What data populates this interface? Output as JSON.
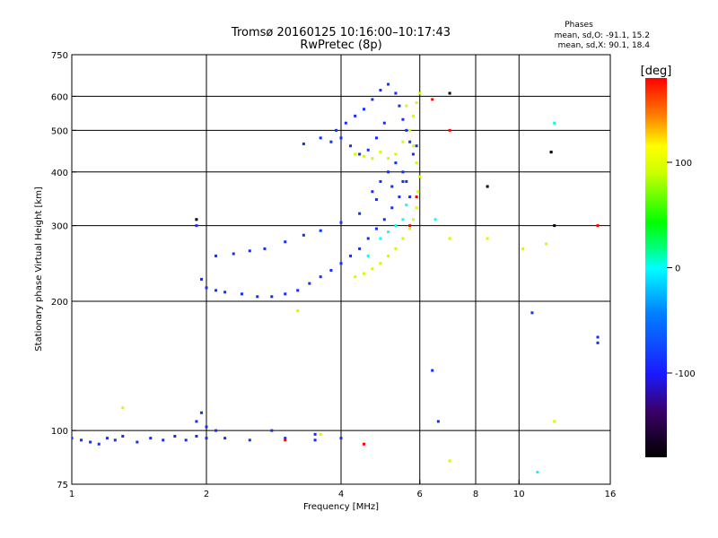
{
  "chart_data": {
    "type": "scatter",
    "title": "Tromsø 20160125 10:16:00–10:17:43",
    "subtitle": "RwPretec (8p)",
    "phases_title": "Phases",
    "phases_o": "mean, sd,O: -91.1, 15.2",
    "phases_x": "mean, sd,X:  90.1, 18.4",
    "xlabel": "Frequency [MHz]",
    "ylabel": "Stationary phase Virtual Height [km]",
    "xscale": "log",
    "yscale": "log",
    "xlim": [
      1,
      16
    ],
    "ylim": [
      75,
      750
    ],
    "xticks": [
      1,
      2,
      4,
      6,
      8,
      10,
      16
    ],
    "yticks": [
      75,
      100,
      200,
      300,
      400,
      500,
      600,
      750
    ],
    "xgrid": [
      2,
      4,
      6,
      8,
      10
    ],
    "ygrid": [
      100,
      200,
      300,
      400,
      500,
      600
    ],
    "colorbar": {
      "label": "[deg]",
      "range": [
        -180,
        180
      ],
      "ticks": [
        100,
        0,
        -100
      ]
    },
    "series": [
      {
        "phase": -90,
        "points": [
          [
            1.0,
            96
          ],
          [
            1.05,
            95
          ],
          [
            1.1,
            94
          ],
          [
            1.15,
            93
          ],
          [
            1.2,
            96
          ],
          [
            1.25,
            95
          ],
          [
            1.3,
            97
          ],
          [
            1.4,
            94
          ],
          [
            1.5,
            96
          ],
          [
            1.6,
            95
          ],
          [
            1.7,
            97
          ],
          [
            1.8,
            95
          ],
          [
            1.9,
            97
          ],
          [
            2.0,
            96
          ],
          [
            2.2,
            96
          ],
          [
            2.5,
            95
          ],
          [
            3.0,
            96
          ],
          [
            3.5,
            95
          ],
          [
            4.0,
            96
          ],
          [
            1.9,
            105
          ],
          [
            2.0,
            102
          ],
          [
            2.1,
            100
          ],
          [
            1.95,
            110
          ],
          [
            1.9,
            300
          ],
          [
            1.95,
            225
          ],
          [
            2.0,
            215
          ],
          [
            2.1,
            212
          ],
          [
            2.2,
            210
          ],
          [
            2.4,
            208
          ],
          [
            2.6,
            205
          ],
          [
            2.8,
            205
          ],
          [
            3.0,
            208
          ],
          [
            3.2,
            212
          ],
          [
            3.4,
            220
          ],
          [
            3.6,
            228
          ],
          [
            3.8,
            236
          ],
          [
            4.0,
            245
          ],
          [
            4.2,
            255
          ],
          [
            4.4,
            265
          ],
          [
            4.6,
            280
          ],
          [
            4.8,
            295
          ],
          [
            5.0,
            310
          ],
          [
            5.2,
            330
          ],
          [
            5.4,
            350
          ],
          [
            5.6,
            380
          ],
          [
            2.1,
            255
          ],
          [
            2.3,
            258
          ],
          [
            2.5,
            262
          ],
          [
            2.7,
            265
          ],
          [
            3.0,
            275
          ],
          [
            3.3,
            285
          ],
          [
            3.6,
            292
          ],
          [
            4.0,
            305
          ],
          [
            4.4,
            320
          ],
          [
            4.8,
            345
          ],
          [
            5.2,
            370
          ],
          [
            5.5,
            400
          ],
          [
            3.3,
            465
          ],
          [
            3.6,
            480
          ],
          [
            3.9,
            500
          ],
          [
            4.1,
            520
          ],
          [
            4.3,
            540
          ],
          [
            4.5,
            560
          ],
          [
            4.7,
            590
          ],
          [
            4.9,
            620
          ],
          [
            5.1,
            640
          ],
          [
            5.3,
            610
          ],
          [
            5.4,
            570
          ],
          [
            5.5,
            530
          ],
          [
            5.6,
            500
          ],
          [
            5.7,
            470
          ],
          [
            5.8,
            440
          ],
          [
            5.9,
            460
          ],
          [
            5.0,
            520
          ],
          [
            4.8,
            480
          ],
          [
            4.6,
            450
          ],
          [
            4.4,
            440
          ],
          [
            4.2,
            460
          ],
          [
            4.0,
            480
          ],
          [
            3.8,
            470
          ],
          [
            5.1,
            400
          ],
          [
            5.3,
            420
          ],
          [
            5.5,
            380
          ],
          [
            5.7,
            350
          ],
          [
            4.9,
            380
          ],
          [
            4.7,
            360
          ],
          [
            2.8,
            100
          ],
          [
            3.5,
            98
          ],
          [
            10.7,
            188
          ],
          [
            15.0,
            165
          ],
          [
            15.0,
            160
          ],
          [
            6.6,
            105
          ],
          [
            6.4,
            138
          ],
          [
            11.8,
            445
          ]
        ]
      },
      {
        "phase": 90,
        "points": [
          [
            4.3,
            228
          ],
          [
            4.5,
            232
          ],
          [
            4.7,
            238
          ],
          [
            4.9,
            245
          ],
          [
            5.1,
            255
          ],
          [
            5.3,
            265
          ],
          [
            5.5,
            280
          ],
          [
            5.7,
            295
          ],
          [
            5.8,
            310
          ],
          [
            5.9,
            330
          ],
          [
            5.95,
            360
          ],
          [
            6.0,
            390
          ],
          [
            5.9,
            420
          ],
          [
            5.8,
            460
          ],
          [
            5.7,
            500
          ],
          [
            5.8,
            540
          ],
          [
            5.9,
            580
          ],
          [
            6.0,
            610
          ],
          [
            5.6,
            570
          ],
          [
            5.5,
            470
          ],
          [
            5.3,
            440
          ],
          [
            5.1,
            430
          ],
          [
            4.9,
            445
          ],
          [
            4.7,
            430
          ],
          [
            4.5,
            435
          ],
          [
            4.3,
            440
          ],
          [
            7.0,
            280
          ],
          [
            8.5,
            280
          ],
          [
            10.2,
            265
          ],
          [
            11.5,
            272
          ],
          [
            12.0,
            520
          ],
          [
            12.0,
            105
          ],
          [
            3.2,
            190
          ],
          [
            1.3,
            113
          ],
          [
            7.0,
            85
          ],
          [
            3.6,
            98
          ]
        ]
      },
      {
        "phase": 0,
        "points": [
          [
            4.9,
            280
          ],
          [
            5.1,
            290
          ],
          [
            5.3,
            300
          ],
          [
            5.5,
            310
          ],
          [
            5.6,
            335
          ],
          [
            4.6,
            255
          ],
          [
            6.5,
            310
          ],
          [
            12.0,
            520
          ],
          [
            11.0,
            80
          ]
        ]
      },
      {
        "phase": 180,
        "points": [
          [
            6.4,
            590
          ],
          [
            7.0,
            500
          ],
          [
            5.7,
            300
          ],
          [
            5.9,
            350
          ],
          [
            15.0,
            300
          ],
          [
            3.0,
            95
          ],
          [
            4.5,
            93
          ]
        ]
      },
      {
        "phase": -180,
        "points": [
          [
            7.0,
            610
          ],
          [
            8.5,
            370
          ],
          [
            11.8,
            445
          ],
          [
            12.0,
            300
          ],
          [
            1.9,
            310
          ]
        ]
      }
    ]
  }
}
